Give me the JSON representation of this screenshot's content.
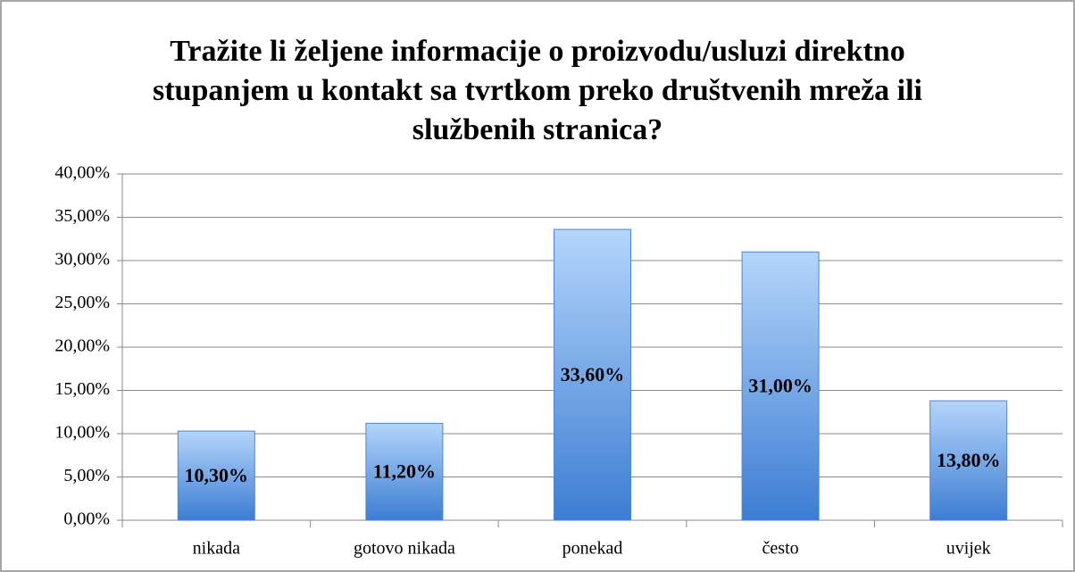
{
  "chart_data": {
    "type": "bar",
    "title": [
      "Tražite li željene informacije o proizvodu/usluzi direktno",
      "stupanjem u kontakt sa tvrtkom preko društvenih mreža ili",
      "službenih stranica?"
    ],
    "categories": [
      "nikada",
      "gotovo nikada",
      "ponekad",
      "često",
      "uvijek"
    ],
    "values": [
      10.3,
      11.2,
      33.6,
      31.0,
      13.8
    ],
    "value_labels": [
      "10,30%",
      "11,20%",
      "33,60%",
      "31,00%",
      "13,80%"
    ],
    "color": "#5b9be6",
    "ylim": [
      0,
      40
    ],
    "yticks": [
      {
        "value": 0,
        "label": "0,00%"
      },
      {
        "value": 5,
        "label": "5,00%"
      },
      {
        "value": 10,
        "label": "10,00%"
      },
      {
        "value": 15,
        "label": "15,00%"
      },
      {
        "value": 20,
        "label": "20,00%"
      },
      {
        "value": 25,
        "label": "25,00%"
      },
      {
        "value": 30,
        "label": "30,00%"
      },
      {
        "value": 35,
        "label": "35,00%"
      },
      {
        "value": 40,
        "label": "40,00%"
      }
    ],
    "grid": true
  }
}
